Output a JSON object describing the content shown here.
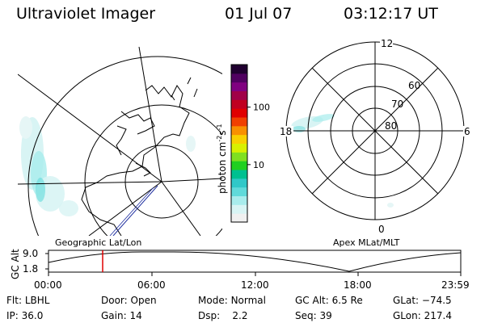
{
  "header": {
    "title": "Ultraviolet Imager",
    "date": "01 Jul 07",
    "time": "03:12:17 UT"
  },
  "colorbar": {
    "unit_label": "photon cm",
    "unit_exp1": "-2",
    "unit_mid": "s",
    "unit_exp2": "-1",
    "ticks": [
      {
        "label": "100",
        "value": 100
      },
      {
        "label": "10",
        "value": 10
      }
    ],
    "colors": [
      "#f0f0f0",
      "#d8f4f4",
      "#a8ecec",
      "#60dada",
      "#30c8c8",
      "#00c090",
      "#20d020",
      "#80e020",
      "#d8f000",
      "#f8d000",
      "#f89000",
      "#f04000",
      "#e00000",
      "#c00020",
      "#a00048",
      "#800080",
      "#500060",
      "#200030"
    ]
  },
  "left_map": {
    "label": "Geographic Lat/Lon"
  },
  "right_map": {
    "label": "Apex MLat/MLT",
    "lat_labels": [
      "60",
      "70",
      "80"
    ],
    "mlt_labels": {
      "top": "12",
      "left": "18",
      "right": "6",
      "bottom": "0"
    }
  },
  "altitude_plot": {
    "ylabel": "GC Alt",
    "ytick_top": "9.0",
    "ytick_bottom": "1.8",
    "xticks": [
      "00:00",
      "06:00",
      "12:00",
      "18:00",
      "23:59"
    ],
    "current_time_marker_color": "#e00000"
  },
  "info": {
    "flt_label": "Flt:",
    "flt_value": "LBHL",
    "ip_label": "IP:",
    "ip_value": "36.0",
    "door_label": "Door:",
    "door_value": "Open",
    "gain_label": "Gain:",
    "gain_value": "14",
    "mode_label": "Mode:",
    "mode_value": "Normal",
    "dsp_label": "Dsp:",
    "dsp_value": "2.2",
    "gcalt_label": "GC Alt:",
    "gcalt_value": "6.5 Re",
    "seq_label": "Seq:",
    "seq_value": "39",
    "glat_label": "GLat:",
    "glat_value": "−74.5",
    "glon_label": "GLon:",
    "glon_value": "217.4"
  }
}
